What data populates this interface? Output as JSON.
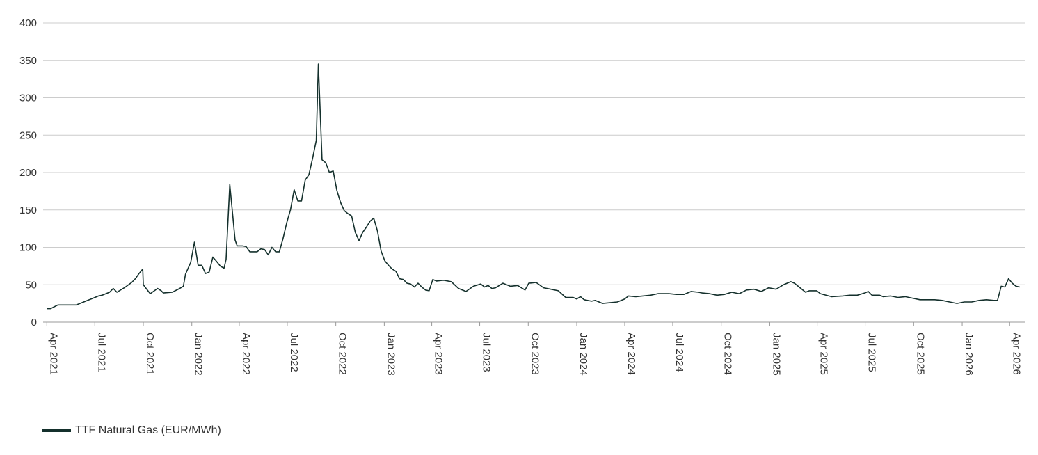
{
  "chart_data": {
    "type": "line",
    "ylim": [
      0,
      400
    ],
    "yticks": [
      0,
      50,
      100,
      150,
      200,
      250,
      300,
      350,
      400
    ],
    "xlim": [
      "2021-03-25",
      "2026-05-01"
    ],
    "xticks": [
      "2021-04-01",
      "2021-07-01",
      "2021-10-01",
      "2022-01-01",
      "2022-04-01",
      "2022-07-01",
      "2022-10-01",
      "2023-01-01",
      "2023-04-01",
      "2023-07-01",
      "2023-10-01",
      "2024-01-01",
      "2024-04-01",
      "2024-07-01",
      "2024-10-01",
      "2025-01-01",
      "2025-04-01",
      "2025-07-01",
      "2025-10-01",
      "2026-01-01",
      "2026-04-01"
    ],
    "xtick_labels": [
      "Apr 2021",
      "Jul 2021",
      "Oct 2021",
      "Jan 2022",
      "Apr 2022",
      "Jul 2022",
      "Oct 2022",
      "Jan 2023",
      "Apr 2023",
      "Jul 2023",
      "Oct 2023",
      "Jan 2024",
      "Apr 2024",
      "Jul 2024",
      "Oct 2024",
      "Jan 2025",
      "Apr 2025",
      "Jul 2025",
      "Oct 2025",
      "Jan 2026",
      "Apr 2026"
    ],
    "grid": true,
    "colors": {
      "line": "#14302c",
      "grid": "#cccccc",
      "axis": "#999999"
    },
    "series": [
      {
        "name": "TTF Natural Gas (EUR/MWh)",
        "points": [
          [
            "2021-04-01",
            18
          ],
          [
            "2021-04-08",
            18
          ],
          [
            "2021-04-22",
            23
          ],
          [
            "2021-05-06",
            23
          ],
          [
            "2021-05-27",
            23
          ],
          [
            "2021-06-10",
            27
          ],
          [
            "2021-06-24",
            31
          ],
          [
            "2021-07-08",
            35
          ],
          [
            "2021-07-15",
            36
          ],
          [
            "2021-07-29",
            40
          ],
          [
            "2021-08-05",
            45
          ],
          [
            "2021-08-12",
            40
          ],
          [
            "2021-08-26",
            46
          ],
          [
            "2021-09-09",
            53
          ],
          [
            "2021-09-16",
            58
          ],
          [
            "2021-09-23",
            65
          ],
          [
            "2021-09-30",
            71
          ],
          [
            "2021-10-01",
            50
          ],
          [
            "2021-10-14",
            38
          ],
          [
            "2021-10-28",
            45
          ],
          [
            "2021-11-04",
            42
          ],
          [
            "2021-11-08",
            39
          ],
          [
            "2021-11-25",
            40
          ],
          [
            "2021-12-09",
            45
          ],
          [
            "2021-12-16",
            48
          ],
          [
            "2021-12-20",
            64
          ],
          [
            "2021-12-30",
            80
          ],
          [
            "2022-01-06",
            107
          ],
          [
            "2022-01-13",
            76
          ],
          [
            "2022-01-20",
            76
          ],
          [
            "2022-01-27",
            65
          ],
          [
            "2022-02-03",
            67
          ],
          [
            "2022-02-10",
            87
          ],
          [
            "2022-02-17",
            81
          ],
          [
            "2022-02-24",
            75
          ],
          [
            "2022-03-03",
            72
          ],
          [
            "2022-03-07",
            84
          ],
          [
            "2022-03-14",
            184
          ],
          [
            "2022-03-24",
            110
          ],
          [
            "2022-03-28",
            102
          ],
          [
            "2022-04-07",
            102
          ],
          [
            "2022-04-14",
            101
          ],
          [
            "2022-04-21",
            94
          ],
          [
            "2022-05-05",
            94
          ],
          [
            "2022-05-12",
            98
          ],
          [
            "2022-05-19",
            97
          ],
          [
            "2022-05-26",
            90
          ],
          [
            "2022-06-02",
            100
          ],
          [
            "2022-06-09",
            94
          ],
          [
            "2022-06-16",
            94
          ],
          [
            "2022-06-23",
            112
          ],
          [
            "2022-06-30",
            133
          ],
          [
            "2022-07-07",
            150
          ],
          [
            "2022-07-14",
            177
          ],
          [
            "2022-07-21",
            162
          ],
          [
            "2022-07-28",
            162
          ],
          [
            "2022-08-04",
            190
          ],
          [
            "2022-08-11",
            197
          ],
          [
            "2022-08-18",
            219
          ],
          [
            "2022-08-25",
            243
          ],
          [
            "2022-08-29",
            345
          ],
          [
            "2022-09-05",
            217
          ],
          [
            "2022-09-12",
            213
          ],
          [
            "2022-09-19",
            200
          ],
          [
            "2022-09-26",
            202
          ],
          [
            "2022-10-03",
            176
          ],
          [
            "2022-10-10",
            160
          ],
          [
            "2022-10-17",
            149
          ],
          [
            "2022-10-24",
            145
          ],
          [
            "2022-10-31",
            142
          ],
          [
            "2022-11-07",
            120
          ],
          [
            "2022-11-14",
            109
          ],
          [
            "2022-11-21",
            120
          ],
          [
            "2022-11-28",
            127
          ],
          [
            "2022-12-05",
            135
          ],
          [
            "2022-12-12",
            139
          ],
          [
            "2022-12-19",
            122
          ],
          [
            "2022-12-26",
            95
          ],
          [
            "2023-01-02",
            82
          ],
          [
            "2023-01-09",
            76
          ],
          [
            "2023-01-16",
            71
          ],
          [
            "2023-01-23",
            68
          ],
          [
            "2023-01-30",
            58
          ],
          [
            "2023-02-06",
            57
          ],
          [
            "2023-02-13",
            52
          ],
          [
            "2023-02-20",
            51
          ],
          [
            "2023-02-27",
            47
          ],
          [
            "2023-03-06",
            52
          ],
          [
            "2023-03-13",
            47
          ],
          [
            "2023-03-20",
            43
          ],
          [
            "2023-03-27",
            42
          ],
          [
            "2023-04-03",
            57
          ],
          [
            "2023-04-10",
            55
          ],
          [
            "2023-04-24",
            56
          ],
          [
            "2023-05-08",
            54
          ],
          [
            "2023-05-22",
            45
          ],
          [
            "2023-06-05",
            41
          ],
          [
            "2023-06-19",
            48
          ],
          [
            "2023-07-03",
            51
          ],
          [
            "2023-07-10",
            47
          ],
          [
            "2023-07-17",
            49
          ],
          [
            "2023-07-24",
            45
          ],
          [
            "2023-07-31",
            46
          ],
          [
            "2023-08-14",
            52
          ],
          [
            "2023-08-28",
            48
          ],
          [
            "2023-09-11",
            49
          ],
          [
            "2023-09-25",
            43
          ],
          [
            "2023-10-02",
            52
          ],
          [
            "2023-10-16",
            53
          ],
          [
            "2023-10-30",
            46
          ],
          [
            "2023-11-13",
            44
          ],
          [
            "2023-11-27",
            42
          ],
          [
            "2023-12-11",
            33
          ],
          [
            "2023-12-25",
            33
          ],
          [
            "2024-01-01",
            31
          ],
          [
            "2024-01-08",
            34
          ],
          [
            "2024-01-15",
            30
          ],
          [
            "2024-01-29",
            28
          ],
          [
            "2024-02-05",
            29
          ],
          [
            "2024-02-19",
            25
          ],
          [
            "2024-03-04",
            26
          ],
          [
            "2024-03-18",
            27
          ],
          [
            "2024-04-01",
            31
          ],
          [
            "2024-04-08",
            35
          ],
          [
            "2024-04-22",
            34
          ],
          [
            "2024-05-20",
            36
          ],
          [
            "2024-06-03",
            38
          ],
          [
            "2024-06-24",
            38
          ],
          [
            "2024-07-08",
            37
          ],
          [
            "2024-07-22",
            37
          ],
          [
            "2024-08-05",
            41
          ],
          [
            "2024-08-19",
            40
          ],
          [
            "2024-08-26",
            39
          ],
          [
            "2024-09-09",
            38
          ],
          [
            "2024-09-23",
            36
          ],
          [
            "2024-10-07",
            37
          ],
          [
            "2024-10-21",
            40
          ],
          [
            "2024-11-04",
            38
          ],
          [
            "2024-11-18",
            43
          ],
          [
            "2024-12-02",
            44
          ],
          [
            "2024-12-16",
            41
          ],
          [
            "2024-12-30",
            46
          ],
          [
            "2025-01-13",
            44
          ],
          [
            "2025-01-27",
            50
          ],
          [
            "2025-02-10",
            54
          ],
          [
            "2025-02-17",
            52
          ],
          [
            "2025-03-10",
            40
          ],
          [
            "2025-03-17",
            42
          ],
          [
            "2025-03-31",
            42
          ],
          [
            "2025-04-07",
            38
          ],
          [
            "2025-04-28",
            34
          ],
          [
            "2025-05-19",
            35
          ],
          [
            "2025-06-02",
            36
          ],
          [
            "2025-06-16",
            36
          ],
          [
            "2025-06-30",
            39
          ],
          [
            "2025-07-07",
            41
          ],
          [
            "2025-07-14",
            36
          ],
          [
            "2025-07-28",
            36
          ],
          [
            "2025-08-04",
            34
          ],
          [
            "2025-08-18",
            35
          ],
          [
            "2025-09-01",
            33
          ],
          [
            "2025-09-15",
            34
          ],
          [
            "2025-09-29",
            32
          ],
          [
            "2025-10-13",
            30
          ],
          [
            "2025-10-27",
            30
          ],
          [
            "2025-11-10",
            30
          ],
          [
            "2025-11-24",
            29
          ],
          [
            "2025-12-08",
            27
          ],
          [
            "2025-12-22",
            25
          ],
          [
            "2026-01-05",
            27
          ],
          [
            "2026-01-19",
            27
          ],
          [
            "2026-02-02",
            29
          ],
          [
            "2026-02-16",
            30
          ],
          [
            "2026-03-02",
            29
          ],
          [
            "2026-03-09",
            29
          ],
          [
            "2026-03-16",
            48
          ],
          [
            "2026-03-23",
            47
          ],
          [
            "2026-03-30",
            58
          ],
          [
            "2026-04-06",
            52
          ],
          [
            "2026-04-13",
            48
          ],
          [
            "2026-04-20",
            47
          ]
        ]
      }
    ],
    "legend": {
      "position": "bottom-left",
      "label": "TTF Natural Gas (EUR/MWh)"
    }
  }
}
